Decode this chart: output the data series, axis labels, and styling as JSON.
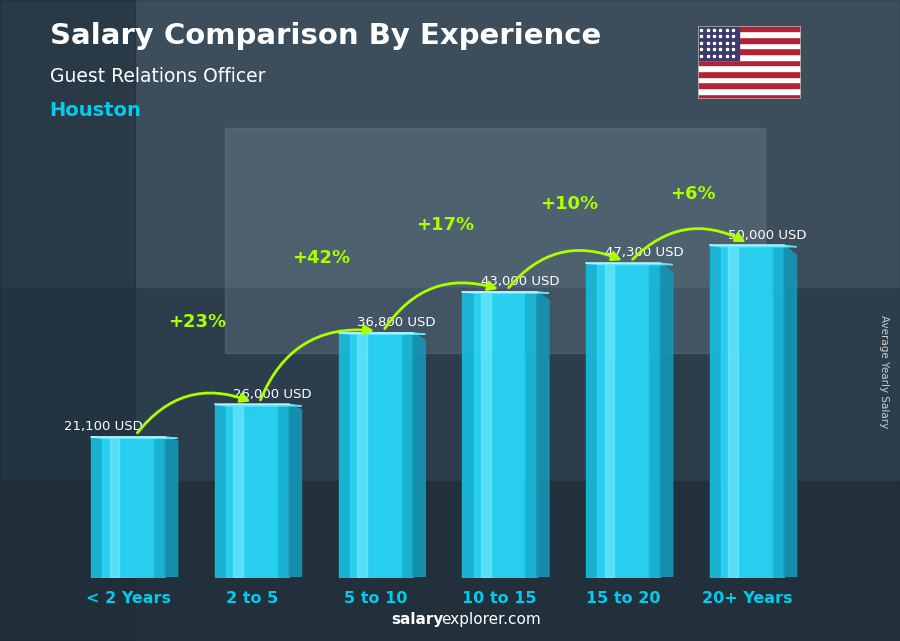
{
  "title": "Salary Comparison By Experience",
  "subtitle": "Guest Relations Officer",
  "city": "Houston",
  "ylabel": "Average Yearly Salary",
  "footer_bold": "salary",
  "footer_regular": "explorer.com",
  "categories": [
    "< 2 Years",
    "2 to 5",
    "5 to 10",
    "10 to 15",
    "15 to 20",
    "20+ Years"
  ],
  "values": [
    21100,
    26000,
    36800,
    43000,
    47300,
    50000
  ],
  "value_labels": [
    "21,100 USD",
    "26,000 USD",
    "36,800 USD",
    "43,000 USD",
    "47,300 USD",
    "50,000 USD"
  ],
  "pct_labels": [
    "+23%",
    "+42%",
    "+17%",
    "+10%",
    "+6%"
  ],
  "bar_face_color": "#29d4f5",
  "bar_side_color": "#1595b5",
  "bar_top_color": "#5de8ff",
  "bar_highlight": "#80eeff",
  "bg_color": "#3a4a5a",
  "title_color": "#ffffff",
  "subtitle_color": "#ffffff",
  "city_color": "#00ccee",
  "value_color": "#ffffff",
  "pct_color": "#aaff00",
  "arrow_color": "#aaff00",
  "xtick_color": "#00ccee",
  "footer_color": "#ffffff",
  "ylabel_color": "#cccccc",
  "ylim": [
    0,
    58000
  ]
}
